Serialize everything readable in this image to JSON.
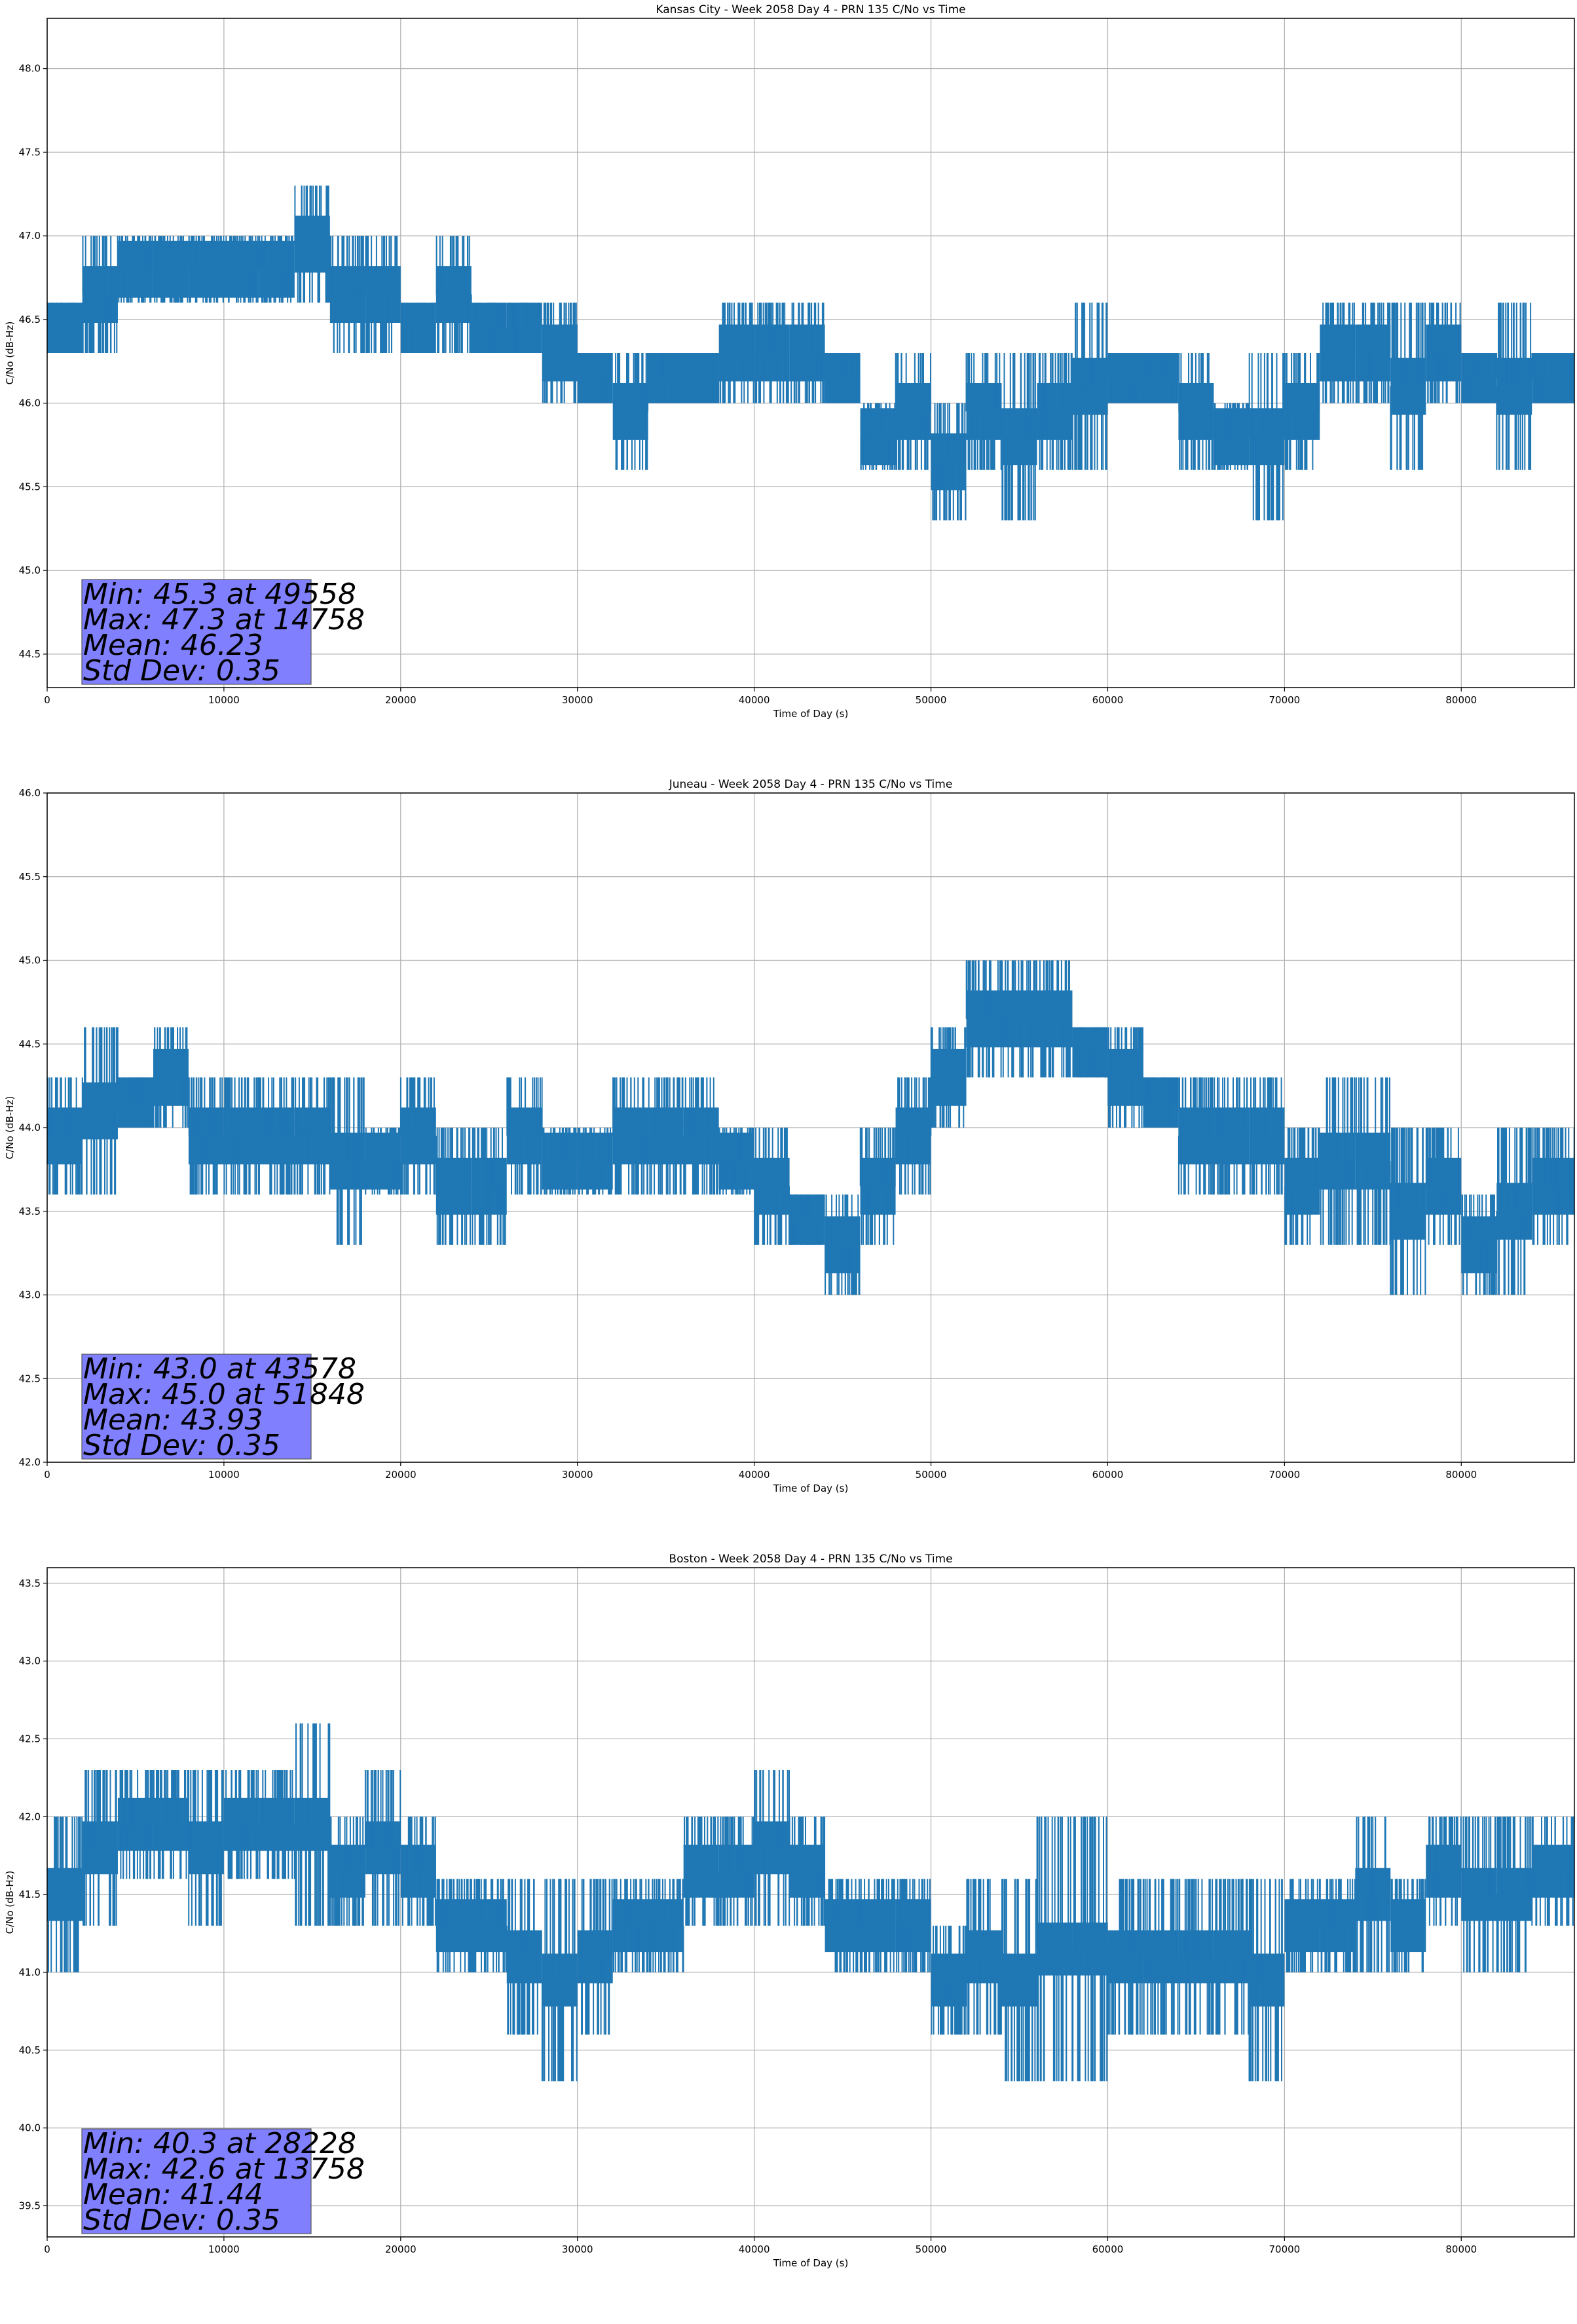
{
  "chart_data": [
    {
      "type": "line",
      "title": "Kansas City - Week 2058 Day 4 - PRN 135 C/No vs Time",
      "xlabel": "Time of Day (s)",
      "ylabel": "C/No (dB-Hz)",
      "xlim": [
        0,
        86400
      ],
      "ylim": [
        44.3,
        48.3
      ],
      "xticks": [
        "0",
        "10000",
        "20000",
        "30000",
        "40000",
        "50000",
        "60000",
        "70000",
        "80000"
      ],
      "yticks": [
        "44.5",
        "45.0",
        "45.5",
        "46.0",
        "46.5",
        "47.0",
        "47.5",
        "48.0"
      ],
      "grid": true,
      "series_color": "#1f77b4",
      "series": [
        {
          "x": [
            0,
            2000,
            4000,
            6000,
            8000,
            10000,
            12000,
            14000,
            16000,
            18000,
            20000,
            22000,
            24000,
            26000,
            28000,
            30000,
            32000,
            34000,
            36000,
            38000,
            40000,
            42000,
            44000,
            46000,
            48000,
            50000,
            52000,
            54000,
            56000,
            58000,
            60000,
            62000,
            64000,
            66000,
            68000,
            70000,
            72000,
            74000,
            76000,
            78000,
            80000,
            82000,
            84000,
            86400
          ],
          "low": [
            46.3,
            46.3,
            46.6,
            46.6,
            46.6,
            46.6,
            46.6,
            46.6,
            46.3,
            46.3,
            46.3,
            46.3,
            46.3,
            46.3,
            46.0,
            46.0,
            45.6,
            46.0,
            46.0,
            46.0,
            46.0,
            46.0,
            46.0,
            45.6,
            45.6,
            45.3,
            45.6,
            45.3,
            45.6,
            45.6,
            46.0,
            46.0,
            45.6,
            45.6,
            45.3,
            45.6,
            46.0,
            46.0,
            45.6,
            46.0,
            46.0,
            45.6,
            46.0,
            46.0
          ],
          "high": [
            46.6,
            47.0,
            47.0,
            47.0,
            47.0,
            47.0,
            47.0,
            47.3,
            47.0,
            47.0,
            46.6,
            47.0,
            46.6,
            46.6,
            46.6,
            46.3,
            46.3,
            46.3,
            46.3,
            46.6,
            46.6,
            46.6,
            46.3,
            46.0,
            46.3,
            46.0,
            46.3,
            46.3,
            46.3,
            46.6,
            46.3,
            46.3,
            46.3,
            46.0,
            46.3,
            46.3,
            46.6,
            46.6,
            46.6,
            46.6,
            46.3,
            46.6,
            46.3,
            46.6
          ]
        }
      ],
      "stats": {
        "min": "Min: 45.3 at 49558",
        "max": "Max: 47.3 at 14758",
        "mean": "Mean: 46.23",
        "std": "Std Dev: 0.35"
      }
    },
    {
      "type": "line",
      "title": "Juneau - Week 2058 Day 4 - PRN 135 C/No vs Time",
      "xlabel": "Time of Day (s)",
      "ylabel": "C/No (dB-Hz)",
      "xlim": [
        0,
        86400
      ],
      "ylim": [
        42.0,
        46.0
      ],
      "xticks": [
        "0",
        "10000",
        "20000",
        "30000",
        "40000",
        "50000",
        "60000",
        "70000",
        "80000"
      ],
      "yticks": [
        "42.0",
        "42.5",
        "43.0",
        "43.5",
        "44.0",
        "44.5",
        "45.0",
        "45.5",
        "46.0"
      ],
      "grid": true,
      "series_color": "#1f77b4",
      "series": [
        {
          "x": [
            0,
            2000,
            4000,
            6000,
            8000,
            10000,
            12000,
            14000,
            16000,
            18000,
            20000,
            22000,
            24000,
            26000,
            28000,
            30000,
            32000,
            34000,
            36000,
            38000,
            40000,
            42000,
            44000,
            46000,
            48000,
            50000,
            52000,
            54000,
            56000,
            58000,
            60000,
            62000,
            64000,
            66000,
            68000,
            70000,
            72000,
            74000,
            76000,
            78000,
            80000,
            82000,
            84000,
            86400
          ],
          "low": [
            43.6,
            43.6,
            44.0,
            44.0,
            43.6,
            43.6,
            43.6,
            43.6,
            43.3,
            43.6,
            43.6,
            43.3,
            43.3,
            43.6,
            43.6,
            43.6,
            43.6,
            43.6,
            43.6,
            43.6,
            43.3,
            43.3,
            43.0,
            43.3,
            43.6,
            44.0,
            44.3,
            44.3,
            44.3,
            44.3,
            44.0,
            44.0,
            43.6,
            43.6,
            43.6,
            43.3,
            43.3,
            43.3,
            43.0,
            43.3,
            43.0,
            43.0,
            43.3,
            43.3
          ],
          "high": [
            44.3,
            44.6,
            44.3,
            44.6,
            44.3,
            44.3,
            44.3,
            44.3,
            44.3,
            44.0,
            44.3,
            44.0,
            44.0,
            44.3,
            44.0,
            44.0,
            44.3,
            44.3,
            44.3,
            44.0,
            44.0,
            43.6,
            43.6,
            44.0,
            44.3,
            44.6,
            45.0,
            45.0,
            45.0,
            44.6,
            44.6,
            44.3,
            44.3,
            44.3,
            44.3,
            44.0,
            44.3,
            44.3,
            44.0,
            44.0,
            43.6,
            44.0,
            44.0,
            44.3
          ]
        }
      ],
      "stats": {
        "min": "Min: 43.0 at 43578",
        "max": "Max: 45.0 at 51848",
        "mean": "Mean: 43.93",
        "std": "Std Dev: 0.35"
      }
    },
    {
      "type": "line",
      "title": "Boston - Week 2058 Day 4 - PRN 135 C/No vs Time",
      "xlabel": "Time of Day (s)",
      "ylabel": "C/No (dB-Hz)",
      "xlim": [
        0,
        86400
      ],
      "ylim": [
        39.3,
        43.6
      ],
      "xticks": [
        "0",
        "10000",
        "20000",
        "30000",
        "40000",
        "50000",
        "60000",
        "70000",
        "80000"
      ],
      "yticks": [
        "39.5",
        "40.0",
        "40.5",
        "41.0",
        "41.5",
        "42.0",
        "42.5",
        "43.0",
        "43.5"
      ],
      "grid": true,
      "series_color": "#1f77b4",
      "series": [
        {
          "x": [
            0,
            2000,
            4000,
            6000,
            8000,
            10000,
            12000,
            14000,
            16000,
            18000,
            20000,
            22000,
            24000,
            26000,
            28000,
            30000,
            32000,
            34000,
            36000,
            38000,
            40000,
            42000,
            44000,
            46000,
            48000,
            50000,
            52000,
            54000,
            56000,
            58000,
            60000,
            62000,
            64000,
            66000,
            68000,
            70000,
            72000,
            74000,
            76000,
            78000,
            80000,
            82000,
            84000,
            86400
          ],
          "low": [
            41.0,
            41.3,
            41.6,
            41.6,
            41.3,
            41.6,
            41.6,
            41.3,
            41.3,
            41.3,
            41.3,
            41.0,
            41.0,
            40.6,
            40.3,
            40.6,
            41.0,
            41.0,
            41.3,
            41.3,
            41.3,
            41.3,
            41.0,
            41.0,
            41.0,
            40.6,
            40.6,
            40.3,
            40.3,
            40.3,
            40.6,
            40.6,
            40.6,
            40.6,
            40.3,
            41.0,
            41.0,
            41.0,
            41.0,
            41.3,
            41.0,
            41.0,
            41.3,
            41.3
          ],
          "high": [
            42.0,
            42.3,
            42.3,
            42.3,
            42.3,
            42.3,
            42.3,
            42.6,
            42.0,
            42.3,
            42.0,
            41.6,
            41.6,
            41.6,
            41.6,
            41.6,
            41.6,
            41.6,
            42.0,
            42.0,
            42.3,
            42.0,
            41.6,
            41.6,
            41.6,
            41.3,
            41.6,
            41.6,
            42.0,
            42.0,
            41.6,
            41.6,
            41.6,
            41.6,
            41.6,
            41.6,
            41.6,
            42.0,
            41.6,
            42.0,
            42.0,
            42.0,
            42.0,
            42.0
          ]
        }
      ],
      "stats": {
        "min": "Min: 40.3 at 28228",
        "max": "Max: 42.6 at 13758",
        "mean": "Mean: 41.44",
        "std": "Std Dev: 0.35"
      }
    }
  ]
}
